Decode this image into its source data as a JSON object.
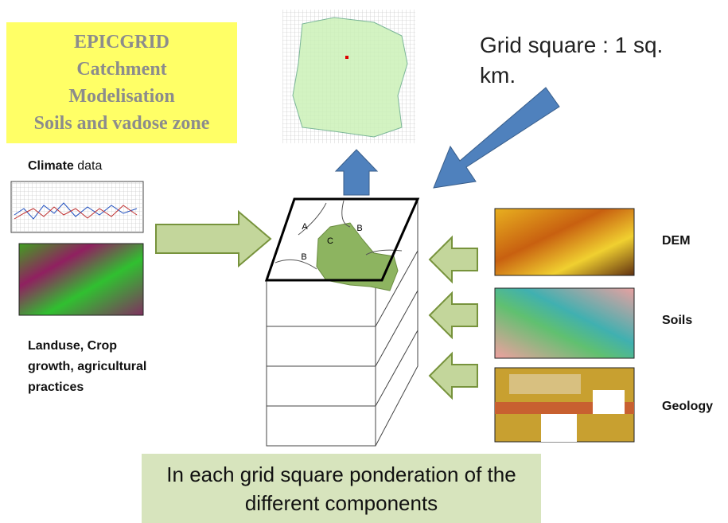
{
  "title_box": {
    "lines": [
      "EPICGRID",
      "Catchment",
      "Modelisation",
      "Soils and vadose zone"
    ]
  },
  "grid_note": "Grid square : 1 sq. km.",
  "block_labels": [
    "A",
    "B",
    "C",
    "B"
  ],
  "inputs": {
    "climate": {
      "bold": "Climate",
      "rest": "data"
    },
    "landuse": "Landuse, Crop growth, agricultural practices"
  },
  "layers": [
    "DEM",
    "Soils",
    "Geology"
  ],
  "footer": "In each grid square ponderation of the different components"
}
